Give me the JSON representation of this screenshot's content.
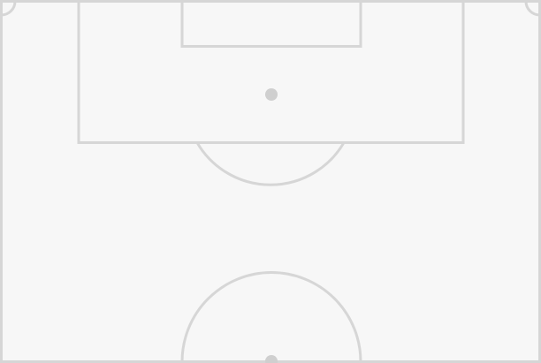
{
  "pitch": {
    "view": "half-pitch",
    "colors": {
      "background": "#f7f7f7",
      "lines": "#d6d6d6",
      "spots": "#cfcfcf"
    }
  }
}
